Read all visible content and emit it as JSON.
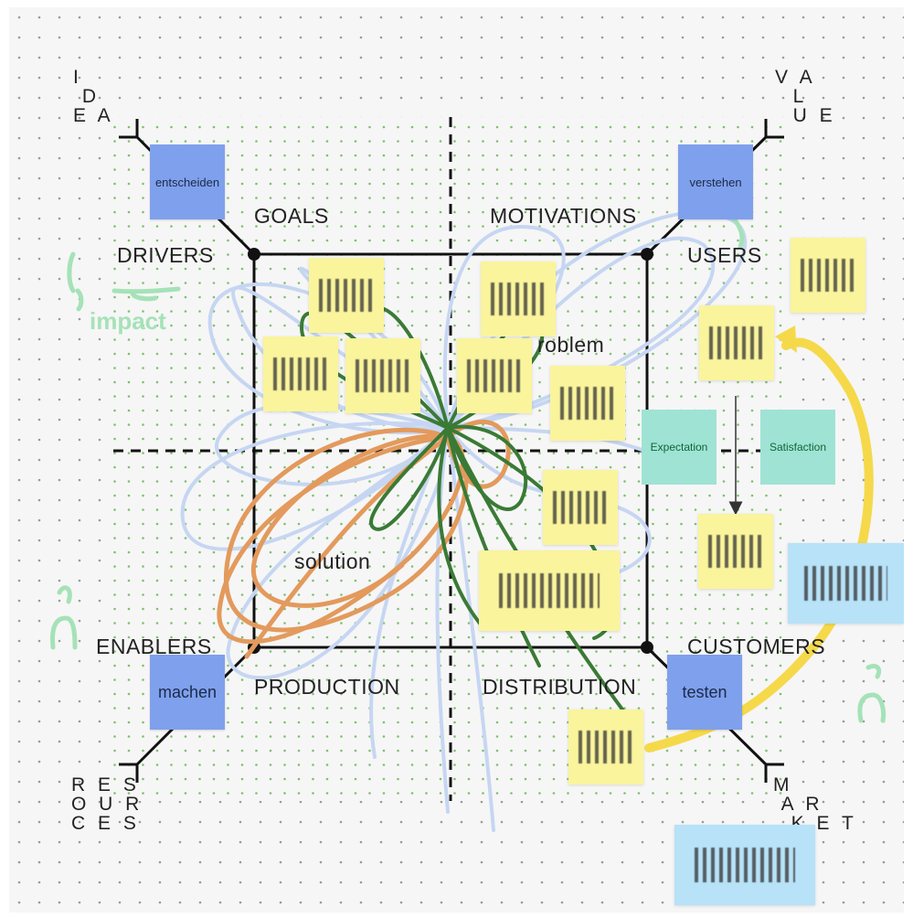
{
  "corners": {
    "idea": "I\n D\nE A",
    "value": "V A\n  L\n  U E",
    "resources": "R E S\nO U R\nC E S",
    "market": "M\n A R\n  K E T"
  },
  "quadrant_labels": {
    "goals": "GOALS",
    "motivations": "MOTIVATIONS",
    "drivers": "DRIVERS",
    "users": "USERS",
    "enablers": "ENABLERS",
    "customers": "CUSTOMERS",
    "production": "PRODUCTION",
    "distribution": "DISTRIBUTION",
    "problem": "roblem",
    "solution": "solution"
  },
  "blue_boxes": {
    "entscheiden": "entscheiden",
    "verstehen": "verstehen",
    "machen": "machen",
    "testen": "testen"
  },
  "teal_notes": {
    "expectation": "Expectation",
    "satisfaction": "Satisfaction"
  },
  "handwriting": {
    "impact": "impact"
  },
  "colors": {
    "sticky_yellow": "#faf49c",
    "blue_box": "#7fa0ec",
    "teal_note": "#9fe3d5",
    "light_blue_note": "#b7e2f8",
    "orange_scribble": "#e39a5c",
    "green_scribble": "#3a7a35",
    "blue_scribble": "#c6d6f2",
    "yellow_arrow": "#f5d94a"
  }
}
